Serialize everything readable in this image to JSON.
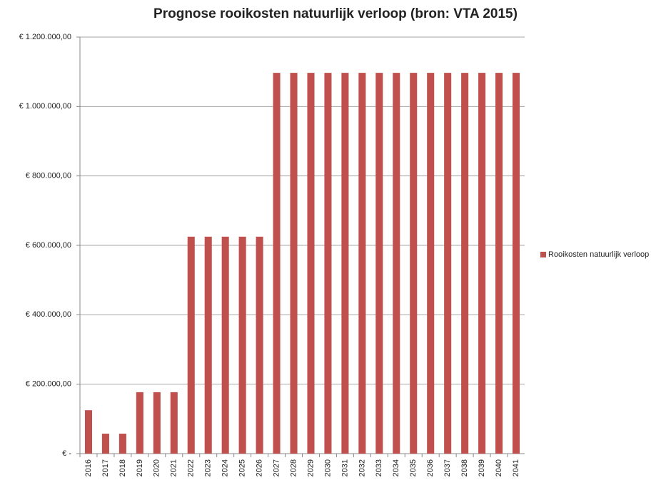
{
  "chart_data": {
    "type": "bar",
    "title": "Prognose rooikosten natuurlijk verloop (bron: VTA 2015)",
    "categories": [
      "2016",
      "2017",
      "2018",
      "2019",
      "2020",
      "2021",
      "2022",
      "2023",
      "2024",
      "2025",
      "2026",
      "2027",
      "2028",
      "2029",
      "2030",
      "2031",
      "2032",
      "2033",
      "2034",
      "2035",
      "2036",
      "2037",
      "2038",
      "2039",
      "2040",
      "2041"
    ],
    "series": [
      {
        "name": "Rooikosten natuurlijk verloop",
        "color": "#c0504d",
        "values": [
          125000,
          57500,
          57500,
          177000,
          177000,
          177000,
          625000,
          625000,
          625000,
          625000,
          625000,
          1097000,
          1097000,
          1097000,
          1097000,
          1097000,
          1097000,
          1097000,
          1097000,
          1097000,
          1097000,
          1097000,
          1097000,
          1097000,
          1097000,
          1097000
        ]
      }
    ],
    "ylim": [
      0,
      1200000
    ],
    "yticks": [
      {
        "value": 0,
        "label": "€ -"
      },
      {
        "value": 200000,
        "label": "€ 200.000,00"
      },
      {
        "value": 400000,
        "label": "€ 400.000,00"
      },
      {
        "value": 600000,
        "label": "€ 600.000,00"
      },
      {
        "value": 800000,
        "label": "€ 800.000,00"
      },
      {
        "value": 1000000,
        "label": "€ 1.000.000,00"
      },
      {
        "value": 1200000,
        "label": "€ 1.200.000,00"
      }
    ],
    "grid": true,
    "legend": "right"
  }
}
